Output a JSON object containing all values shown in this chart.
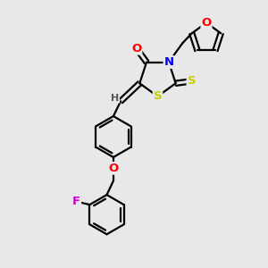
{
  "bg_color": "#e8e8e8",
  "bond_color": "#000000",
  "atom_colors": {
    "O": "#ff0000",
    "N": "#0000ff",
    "S": "#cccc00",
    "F": "#cc00cc",
    "H": "#555555",
    "C": "#000000"
  },
  "line_width": 1.6,
  "dbo": 0.12,
  "figsize": [
    3.0,
    3.0
  ],
  "dpi": 100
}
